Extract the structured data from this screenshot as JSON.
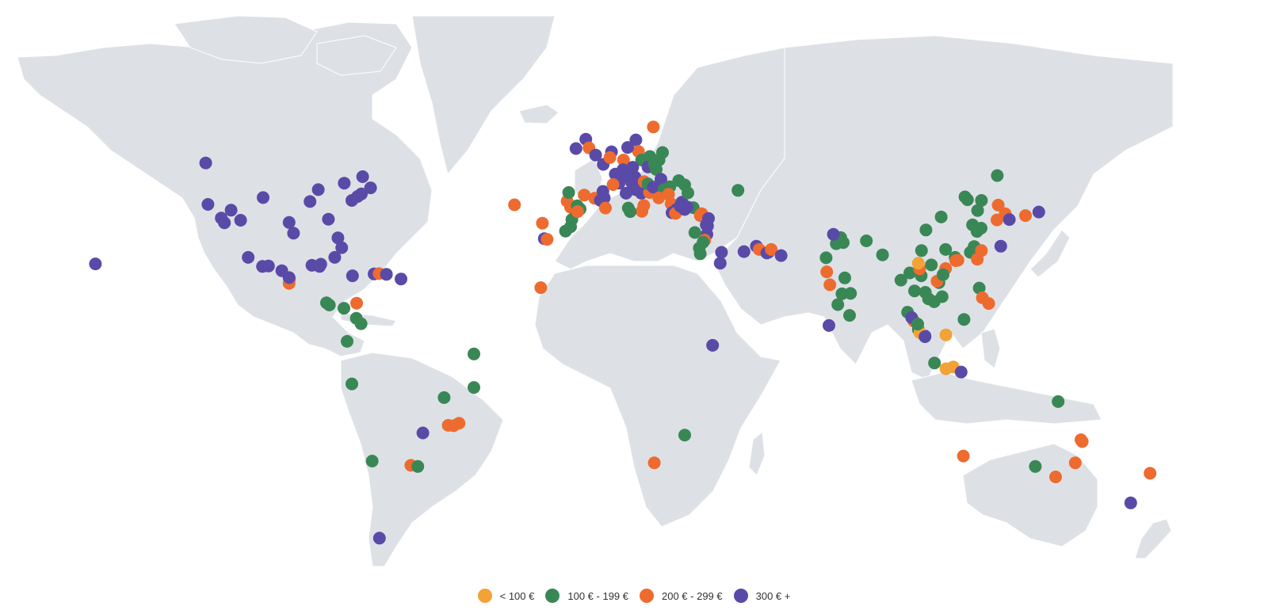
{
  "legend": [
    {
      "key": "lt100",
      "label": "< 100 €",
      "color": "#f2a236"
    },
    {
      "key": "100_199",
      "label": "100 € - 199 €",
      "color": "#3a8756"
    },
    {
      "key": "200_299",
      "label": "200 € - 299 €",
      "color": "#ee6b2f"
    },
    {
      "key": "300plus",
      "label": "300 € +",
      "color": "#5a4aa8"
    }
  ],
  "colors": {
    "land": "#dde1e6",
    "border": "#ffffff",
    "background": "#ffffff"
  },
  "destinations": [
    {
      "lon": -157.9,
      "lat": 21.3,
      "cat": "300plus"
    },
    {
      "lon": -123.1,
      "lat": 49.3,
      "cat": "300plus"
    },
    {
      "lon": -122.4,
      "lat": 37.8,
      "cat": "300plus"
    },
    {
      "lon": -118.2,
      "lat": 34.0,
      "cat": "300plus"
    },
    {
      "lon": -117.2,
      "lat": 32.7,
      "cat": "300plus"
    },
    {
      "lon": -115.1,
      "lat": 36.2,
      "cat": "300plus"
    },
    {
      "lon": -112.1,
      "lat": 33.4,
      "cat": "300plus"
    },
    {
      "lon": -105.0,
      "lat": 39.7,
      "cat": "300plus"
    },
    {
      "lon": -96.8,
      "lat": 32.8,
      "cat": "300plus"
    },
    {
      "lon": -95.4,
      "lat": 29.8,
      "cat": "300plus"
    },
    {
      "lon": -90.2,
      "lat": 38.6,
      "cat": "300plus"
    },
    {
      "lon": -87.6,
      "lat": 41.9,
      "cat": "300plus"
    },
    {
      "lon": -84.4,
      "lat": 33.7,
      "cat": "300plus"
    },
    {
      "lon": -81.4,
      "lat": 28.5,
      "cat": "300plus"
    },
    {
      "lon": -80.2,
      "lat": 25.8,
      "cat": "300plus"
    },
    {
      "lon": -79.4,
      "lat": 43.7,
      "cat": "300plus"
    },
    {
      "lon": -77.0,
      "lat": 38.9,
      "cat": "300plus"
    },
    {
      "lon": -75.2,
      "lat": 40.0,
      "cat": "300plus"
    },
    {
      "lon": -74.0,
      "lat": 40.7,
      "cat": "300plus"
    },
    {
      "lon": -73.6,
      "lat": 45.5,
      "cat": "300plus"
    },
    {
      "lon": -71.1,
      "lat": 42.4,
      "cat": "300plus"
    },
    {
      "lon": -109.7,
      "lat": 23.1,
      "cat": "300plus"
    },
    {
      "lon": -105.2,
      "lat": 20.6,
      "cat": "300plus"
    },
    {
      "lon": -103.3,
      "lat": 20.7,
      "cat": "300plus"
    },
    {
      "lon": -99.1,
      "lat": 19.4,
      "cat": "300plus"
    },
    {
      "lon": -96.7,
      "lat": 17.1,
      "cat": "200_299"
    },
    {
      "lon": -96.8,
      "lat": 15.9,
      "cat": "200_299"
    },
    {
      "lon": -96.8,
      "lat": 17.5,
      "cat": "300plus"
    },
    {
      "lon": -89.6,
      "lat": 20.9,
      "cat": "300plus"
    },
    {
      "lon": -86.8,
      "lat": 21.2,
      "cat": "300plus"
    },
    {
      "lon": -87.2,
      "lat": 20.6,
      "cat": "300plus"
    },
    {
      "lon": -82.4,
      "lat": 23.1,
      "cat": "300plus"
    },
    {
      "lon": -76.8,
      "lat": 18.0,
      "cat": "300plus"
    },
    {
      "lon": -70.0,
      "lat": 18.5,
      "cat": "300plus"
    },
    {
      "lon": -68.4,
      "lat": 18.6,
      "cat": "200_299"
    },
    {
      "lon": -66.1,
      "lat": 18.4,
      "cat": "300plus"
    },
    {
      "lon": -61.5,
      "lat": 17.1,
      "cat": "300plus"
    },
    {
      "lon": -85.0,
      "lat": 10.5,
      "cat": "100_199"
    },
    {
      "lon": -84.1,
      "lat": 9.9,
      "cat": "100_199"
    },
    {
      "lon": -79.5,
      "lat": 9.0,
      "cat": "100_199"
    },
    {
      "lon": -75.5,
      "lat": 10.4,
      "cat": "200_299"
    },
    {
      "lon": -74.1,
      "lat": 4.7,
      "cat": "100_199"
    },
    {
      "lon": -75.6,
      "lat": 6.2,
      "cat": "100_199"
    },
    {
      "lon": -78.5,
      "lat": -0.2,
      "cat": "100_199"
    },
    {
      "lon": -77.0,
      "lat": -12.0,
      "cat": "100_199"
    },
    {
      "lon": -38.5,
      "lat": -3.7,
      "cat": "100_199"
    },
    {
      "lon": -38.5,
      "lat": -13.0,
      "cat": "100_199"
    },
    {
      "lon": -47.9,
      "lat": -15.8,
      "cat": "100_199"
    },
    {
      "lon": -43.2,
      "lat": -22.9,
      "cat": "200_299"
    },
    {
      "lon": -44.9,
      "lat": -23.6,
      "cat": "200_299"
    },
    {
      "lon": -46.6,
      "lat": -23.5,
      "cat": "200_299"
    },
    {
      "lon": -54.6,
      "lat": -25.6,
      "cat": "300plus"
    },
    {
      "lon": -70.6,
      "lat": -33.4,
      "cat": "100_199"
    },
    {
      "lon": -58.4,
      "lat": -34.6,
      "cat": "200_299"
    },
    {
      "lon": -56.2,
      "lat": -34.9,
      "cat": "100_199"
    },
    {
      "lon": -68.3,
      "lat": -54.8,
      "cat": "300plus"
    },
    {
      "lon": -25.7,
      "lat": 37.7,
      "cat": "200_299"
    },
    {
      "lon": -16.9,
      "lat": 32.6,
      "cat": "200_299"
    },
    {
      "lon": -16.3,
      "lat": 28.3,
      "cat": "300plus"
    },
    {
      "lon": -15.4,
      "lat": 28.1,
      "cat": "200_299"
    },
    {
      "lon": -17.4,
      "lat": 14.7,
      "cat": "200_299"
    },
    {
      "lon": -9.1,
      "lat": 38.7,
      "cat": "200_299"
    },
    {
      "lon": -8.6,
      "lat": 41.1,
      "cat": "100_199"
    },
    {
      "lon": -8.0,
      "lat": 37.0,
      "cat": "200_299"
    },
    {
      "lon": -5.9,
      "lat": 37.4,
      "cat": "100_199"
    },
    {
      "lon": -5.0,
      "lat": 36.5,
      "cat": "100_199"
    },
    {
      "lon": -3.7,
      "lat": 40.4,
      "cat": "200_299"
    },
    {
      "lon": -0.4,
      "lat": 39.5,
      "cat": "200_299"
    },
    {
      "lon": 2.2,
      "lat": 41.4,
      "cat": "300plus"
    },
    {
      "lon": 2.6,
      "lat": 39.6,
      "cat": "300plus"
    },
    {
      "lon": 1.4,
      "lat": 38.9,
      "cat": "300plus"
    },
    {
      "lon": -7.6,
      "lat": 33.6,
      "cat": "100_199"
    },
    {
      "lon": -8.0,
      "lat": 31.6,
      "cat": "100_199"
    },
    {
      "lon": -9.6,
      "lat": 30.4,
      "cat": "100_199"
    },
    {
      "lon": -5.8,
      "lat": 35.8,
      "cat": "200_299"
    },
    {
      "lon": 3.0,
      "lat": 36.8,
      "cat": "200_299"
    },
    {
      "lon": -6.3,
      "lat": 53.3,
      "cat": "300plus"
    },
    {
      "lon": -3.2,
      "lat": 55.9,
      "cat": "300plus"
    },
    {
      "lon": -2.2,
      "lat": 53.5,
      "cat": "200_299"
    },
    {
      "lon": -0.1,
      "lat": 51.5,
      "cat": "300plus"
    },
    {
      "lon": 2.3,
      "lat": 48.9,
      "cat": "300plus"
    },
    {
      "lon": 4.9,
      "lat": 52.4,
      "cat": "300plus"
    },
    {
      "lon": 4.4,
      "lat": 50.8,
      "cat": "200_299"
    },
    {
      "lon": 8.7,
      "lat": 50.1,
      "cat": "200_299"
    },
    {
      "lon": 12.6,
      "lat": 55.7,
      "cat": "300plus"
    },
    {
      "lon": 13.4,
      "lat": 52.5,
      "cat": "200_299"
    },
    {
      "lon": 10.0,
      "lat": 53.6,
      "cat": "300plus"
    },
    {
      "lon": 18.1,
      "lat": 59.3,
      "cat": "200_299"
    },
    {
      "lon": 21.0,
      "lat": 52.2,
      "cat": "100_199"
    },
    {
      "lon": 19.9,
      "lat": 50.1,
      "cat": "100_199"
    },
    {
      "lon": 17.0,
      "lat": 51.1,
      "cat": "100_199"
    },
    {
      "lon": 14.4,
      "lat": 50.1,
      "cat": "100_199"
    },
    {
      "lon": 16.4,
      "lat": 48.2,
      "cat": "300plus"
    },
    {
      "lon": 19.0,
      "lat": 47.5,
      "cat": "100_199"
    },
    {
      "lon": 18.4,
      "lat": 49.1,
      "cat": "100_199"
    },
    {
      "lon": 11.6,
      "lat": 48.1,
      "cat": "300plus"
    },
    {
      "lon": 8.5,
      "lat": 47.4,
      "cat": "300plus"
    },
    {
      "lon": 6.1,
      "lat": 46.2,
      "cat": "300plus"
    },
    {
      "lon": 7.3,
      "lat": 43.7,
      "cat": "300plus"
    },
    {
      "lon": 5.4,
      "lat": 43.3,
      "cat": "200_299"
    },
    {
      "lon": 9.2,
      "lat": 45.5,
      "cat": "300plus"
    },
    {
      "lon": 12.3,
      "lat": 45.4,
      "cat": "300plus"
    },
    {
      "lon": 11.3,
      "lat": 43.8,
      "cat": "300plus"
    },
    {
      "lon": 12.5,
      "lat": 41.9,
      "cat": "300plus"
    },
    {
      "lon": 14.3,
      "lat": 40.9,
      "cat": "300plus"
    },
    {
      "lon": 16.9,
      "lat": 41.1,
      "cat": "200_299"
    },
    {
      "lon": 15.1,
      "lat": 37.5,
      "cat": "200_299"
    },
    {
      "lon": 14.5,
      "lat": 35.9,
      "cat": "200_299"
    },
    {
      "lon": 10.2,
      "lat": 36.8,
      "cat": "100_199"
    },
    {
      "lon": 10.8,
      "lat": 35.8,
      "cat": "100_199"
    },
    {
      "lon": 9.5,
      "lat": 40.9,
      "cat": "300plus"
    },
    {
      "lon": 15.2,
      "lat": 44.1,
      "cat": "200_299"
    },
    {
      "lon": 16.4,
      "lat": 43.5,
      "cat": "100_199"
    },
    {
      "lon": 18.1,
      "lat": 42.6,
      "cat": "300plus"
    },
    {
      "lon": 20.5,
      "lat": 44.8,
      "cat": "300plus"
    },
    {
      "lon": 23.3,
      "lat": 42.7,
      "cat": "100_199"
    },
    {
      "lon": 21.4,
      "lat": 41.9,
      "cat": "100_199"
    },
    {
      "lon": 26.1,
      "lat": 44.4,
      "cat": "100_199"
    },
    {
      "lon": 28.0,
      "lat": 43.2,
      "cat": "100_199"
    },
    {
      "lon": 19.8,
      "lat": 39.6,
      "cat": "200_299"
    },
    {
      "lon": 22.9,
      "lat": 40.6,
      "cat": "200_299"
    },
    {
      "lon": 23.7,
      "lat": 38.0,
      "cat": "200_299"
    },
    {
      "lon": 25.4,
      "lat": 36.4,
      "cat": "300plus"
    },
    {
      "lon": 24.0,
      "lat": 35.5,
      "cat": "300plus"
    },
    {
      "lon": 25.1,
      "lat": 35.3,
      "cat": "200_299"
    },
    {
      "lon": 26.6,
      "lat": 37.3,
      "cat": "300plus"
    },
    {
      "lon": 27.1,
      "lat": 38.4,
      "cat": "300plus"
    },
    {
      "lon": 28.0,
      "lat": 36.4,
      "cat": "300plus"
    },
    {
      "lon": 29.0,
      "lat": 41.0,
      "cat": "100_199"
    },
    {
      "lon": 30.7,
      "lat": 36.9,
      "cat": "100_199"
    },
    {
      "lon": 28.8,
      "lat": 37.1,
      "cat": "300plus"
    },
    {
      "lon": 32.9,
      "lat": 34.7,
      "cat": "200_299"
    },
    {
      "lon": 33.4,
      "lat": 35.2,
      "cat": "200_299"
    },
    {
      "lon": 35.5,
      "lat": 33.9,
      "cat": "300plus"
    },
    {
      "lon": 34.8,
      "lat": 32.1,
      "cat": "300plus"
    },
    {
      "lon": 35.2,
      "lat": 31.8,
      "cat": "300plus"
    },
    {
      "lon": 35.0,
      "lat": 29.5,
      "cat": "300plus"
    },
    {
      "lon": 31.2,
      "lat": 30.0,
      "cat": "100_199"
    },
    {
      "lon": 32.6,
      "lat": 25.7,
      "cat": "100_199"
    },
    {
      "lon": 34.3,
      "lat": 27.9,
      "cat": "200_299"
    },
    {
      "lon": 33.8,
      "lat": 27.3,
      "cat": "100_199"
    },
    {
      "lon": 32.9,
      "lat": 24.1,
      "cat": "100_199"
    },
    {
      "lon": 44.8,
      "lat": 41.7,
      "cat": "100_199"
    },
    {
      "lon": 39.2,
      "lat": 21.5,
      "cat": "300plus"
    },
    {
      "lon": 39.6,
      "lat": 24.5,
      "cat": "300plus"
    },
    {
      "lon": 46.7,
      "lat": 24.7,
      "cat": "300plus"
    },
    {
      "lon": 50.6,
      "lat": 26.2,
      "cat": "300plus"
    },
    {
      "lon": 51.5,
      "lat": 25.3,
      "cat": "200_299"
    },
    {
      "lon": 53.9,
      "lat": 24.3,
      "cat": "300plus"
    },
    {
      "lon": 54.4,
      "lat": 24.5,
      "cat": "300plus"
    },
    {
      "lon": 55.3,
      "lat": 25.3,
      "cat": "200_299"
    },
    {
      "lon": 58.4,
      "lat": 23.6,
      "cat": "300plus"
    },
    {
      "lon": 36.8,
      "lat": -1.3,
      "cat": "300plus"
    },
    {
      "lon": 28.0,
      "lat": -26.2,
      "cat": "100_199"
    },
    {
      "lon": 18.4,
      "lat": -33.9,
      "cat": "200_299"
    },
    {
      "lon": 72.8,
      "lat": 19.1,
      "cat": "200_299"
    },
    {
      "lon": 73.8,
      "lat": 15.5,
      "cat": "200_299"
    },
    {
      "lon": 77.2,
      "lat": 28.6,
      "cat": "100_199"
    },
    {
      "lon": 75.8,
      "lat": 26.9,
      "cat": "100_199"
    },
    {
      "lon": 78.0,
      "lat": 27.2,
      "cat": "100_199"
    },
    {
      "lon": 72.6,
      "lat": 23.0,
      "cat": "100_199"
    },
    {
      "lon": 74.9,
      "lat": 29.5,
      "cat": "300plus"
    },
    {
      "lon": 77.6,
      "lat": 13.0,
      "cat": "100_199"
    },
    {
      "lon": 78.5,
      "lat": 17.4,
      "cat": "100_199"
    },
    {
      "lon": 80.3,
      "lat": 13.1,
      "cat": "100_199"
    },
    {
      "lon": 76.3,
      "lat": 10.0,
      "cat": "100_199"
    },
    {
      "lon": 80.0,
      "lat": 7.0,
      "cat": "100_199"
    },
    {
      "lon": 73.5,
      "lat": 4.2,
      "cat": "300plus"
    },
    {
      "lon": 85.3,
      "lat": 27.7,
      "cat": "100_199"
    },
    {
      "lon": 90.4,
      "lat": 23.8,
      "cat": "100_199"
    },
    {
      "lon": 96.2,
      "lat": 16.8,
      "cat": "100_199"
    },
    {
      "lon": 100.5,
      "lat": 13.8,
      "cat": "100_199"
    },
    {
      "lon": 98.3,
      "lat": 7.9,
      "cat": "100_199"
    },
    {
      "lon": 99.0,
      "lat": 18.8,
      "cat": "100_199"
    },
    {
      "lon": 102.6,
      "lat": 18.0,
      "cat": "100_199"
    },
    {
      "lon": 102.1,
      "lat": 19.9,
      "cat": "200_299"
    },
    {
      "lon": 104.9,
      "lat": 11.6,
      "cat": "100_199"
    },
    {
      "lon": 103.9,
      "lat": 13.4,
      "cat": "100_199"
    },
    {
      "lon": 106.7,
      "lat": 10.8,
      "cat": "100_199"
    },
    {
      "lon": 108.2,
      "lat": 16.1,
      "cat": "100_199"
    },
    {
      "lon": 105.8,
      "lat": 21.0,
      "cat": "100_199"
    },
    {
      "lon": 107.6,
      "lat": 16.5,
      "cat": "200_299"
    },
    {
      "lon": 109.2,
      "lat": 12.2,
      "cat": "100_199"
    },
    {
      "lon": 101.7,
      "lat": 3.1,
      "cat": "100_199"
    },
    {
      "lon": 100.3,
      "lat": 5.4,
      "cat": "200_299"
    },
    {
      "lon": 99.6,
      "lat": 6.4,
      "cat": "300plus"
    },
    {
      "lon": 103.8,
      "lat": 1.3,
      "cat": "300plus"
    },
    {
      "lon": 102.2,
      "lat": 2.2,
      "cat": "lt100"
    },
    {
      "lon": 101.5,
      "lat": 4.6,
      "cat": "100_199"
    },
    {
      "lon": 116.1,
      "lat": 5.9,
      "cat": "100_199"
    },
    {
      "lon": 110.4,
      "lat": 1.6,
      "cat": "lt100"
    },
    {
      "lon": 106.8,
      "lat": -6.2,
      "cat": "100_199"
    },
    {
      "lon": 110.4,
      "lat": -7.8,
      "cat": "lt100"
    },
    {
      "lon": 112.7,
      "lat": -7.3,
      "cat": "lt100"
    },
    {
      "lon": 115.2,
      "lat": -8.7,
      "cat": "300plus"
    },
    {
      "lon": 120.9,
      "lat": 14.6,
      "cat": "100_199"
    },
    {
      "lon": 123.9,
      "lat": 10.3,
      "cat": "200_299"
    },
    {
      "lon": 121.9,
      "lat": 11.9,
      "cat": "200_299"
    },
    {
      "lon": 101.7,
      "lat": 21.5,
      "cat": "lt100"
    },
    {
      "lon": 103.8,
      "lat": 1.1,
      "cat": "300plus"
    },
    {
      "lon": 102.7,
      "lat": 25.0,
      "cat": "100_199"
    },
    {
      "lon": 104.1,
      "lat": 30.7,
      "cat": "100_199"
    },
    {
      "lon": 108.9,
      "lat": 34.3,
      "cat": "100_199"
    },
    {
      "lon": 113.3,
      "lat": 23.1,
      "cat": "100_199"
    },
    {
      "lon": 114.2,
      "lat": 22.3,
      "cat": "200_299"
    },
    {
      "lon": 113.5,
      "lat": 22.2,
      "cat": "200_299"
    },
    {
      "lon": 110.3,
      "lat": 25.3,
      "cat": "100_199"
    },
    {
      "lon": 110.3,
      "lat": 20.0,
      "cat": "200_299"
    },
    {
      "lon": 109.5,
      "lat": 18.3,
      "cat": "100_199"
    },
    {
      "lon": 116.4,
      "lat": 39.9,
      "cat": "100_199"
    },
    {
      "lon": 117.2,
      "lat": 39.1,
      "cat": "100_199"
    },
    {
      "lon": 118.8,
      "lat": 32.1,
      "cat": "100_199"
    },
    {
      "lon": 120.2,
      "lat": 30.3,
      "cat": "100_199"
    },
    {
      "lon": 121.5,
      "lat": 31.2,
      "cat": "100_199"
    },
    {
      "lon": 119.3,
      "lat": 26.1,
      "cat": "100_199"
    },
    {
      "lon": 118.1,
      "lat": 24.5,
      "cat": "100_199"
    },
    {
      "lon": 120.4,
      "lat": 36.1,
      "cat": "100_199"
    },
    {
      "lon": 121.6,
      "lat": 38.9,
      "cat": "100_199"
    },
    {
      "lon": 126.6,
      "lat": 45.8,
      "cat": "100_199"
    },
    {
      "lon": 121.6,
      "lat": 25.0,
      "cat": "200_299"
    },
    {
      "lon": 120.3,
      "lat": 22.6,
      "cat": "200_299"
    },
    {
      "lon": 126.9,
      "lat": 37.6,
      "cat": "200_299"
    },
    {
      "lon": 126.5,
      "lat": 33.5,
      "cat": "200_299"
    },
    {
      "lon": 129.1,
      "lat": 35.2,
      "cat": "200_299"
    },
    {
      "lon": 130.4,
      "lat": 33.6,
      "cat": "300plus"
    },
    {
      "lon": 135.5,
      "lat": 34.7,
      "cat": "200_299"
    },
    {
      "lon": 139.7,
      "lat": 35.7,
      "cat": "300plus"
    },
    {
      "lon": 127.7,
      "lat": 26.2,
      "cat": "300plus"
    },
    {
      "lon": 153.0,
      "lat": -27.5,
      "cat": "200_299"
    },
    {
      "lon": 153.4,
      "lat": -28.0,
      "cat": "200_299"
    },
    {
      "lon": 151.2,
      "lat": -33.9,
      "cat": "200_299"
    },
    {
      "lon": 145.8,
      "lat": -16.9,
      "cat": "100_199"
    },
    {
      "lon": 115.9,
      "lat": -32.0,
      "cat": "200_299"
    },
    {
      "lon": 138.6,
      "lat": -34.9,
      "cat": "100_199"
    },
    {
      "lon": 145.0,
      "lat": -37.8,
      "cat": "200_299"
    },
    {
      "lon": 174.8,
      "lat": -36.8,
      "cat": "200_299"
    },
    {
      "lon": 168.7,
      "lat": -45.0,
      "cat": "300plus"
    }
  ]
}
